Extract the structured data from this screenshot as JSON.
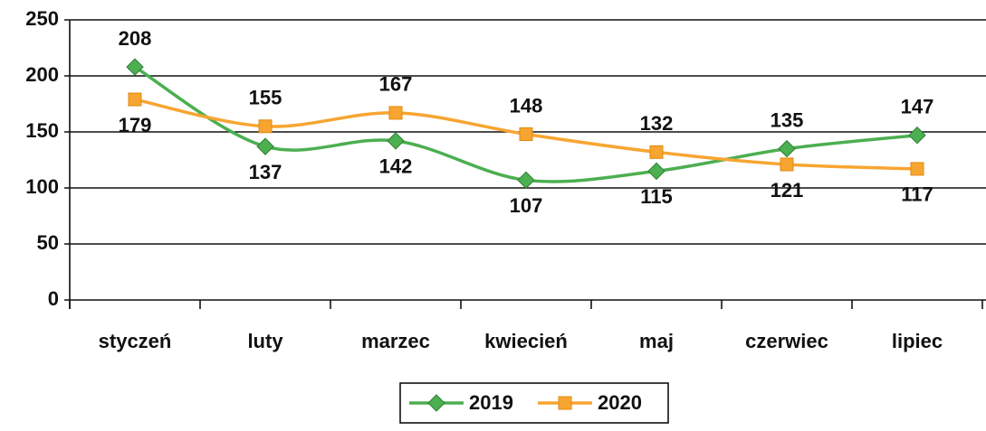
{
  "chart_data": {
    "type": "line",
    "categories": [
      "styczeń",
      "luty",
      "marzec",
      "kwiecień",
      "maj",
      "czerwiec",
      "lipiec"
    ],
    "series": [
      {
        "name": "2019",
        "color": "#4caf50",
        "marker": "diamond",
        "values": [
          208,
          137,
          142,
          107,
          115,
          135,
          147
        ]
      },
      {
        "name": "2020",
        "color": "#f7a531",
        "marker": "square",
        "values": [
          179,
          155,
          167,
          148,
          132,
          121,
          117
        ]
      }
    ],
    "ylim": [
      0,
      250
    ],
    "yticks": [
      0,
      50,
      100,
      150,
      200,
      250
    ],
    "grid": true,
    "smooth": true,
    "legend": "bottom"
  }
}
